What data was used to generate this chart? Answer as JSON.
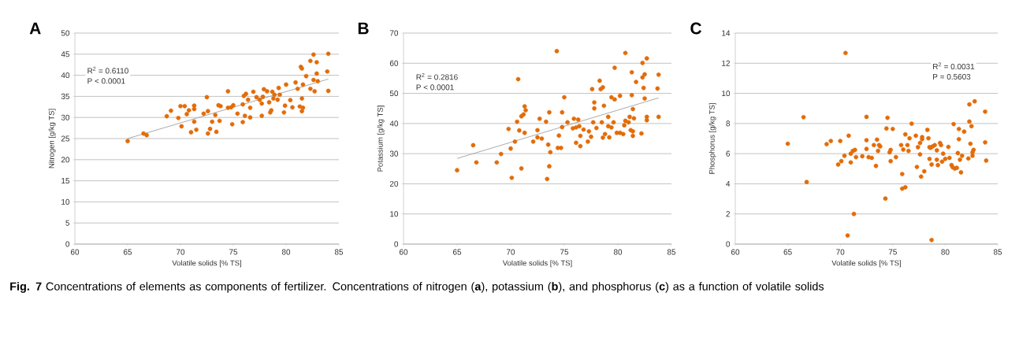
{
  "chart_data": [
    {
      "type": "scatter",
      "title": "A",
      "xlabel": "Volatile solids [% TS]",
      "ylabel": "Nitrogen [g/kg TS]",
      "xlim": [
        60,
        85
      ],
      "ylim": [
        0,
        50
      ],
      "xticks": [
        60,
        65,
        70,
        75,
        80,
        85
      ],
      "yticks": [
        0,
        5,
        10,
        15,
        20,
        25,
        30,
        35,
        40,
        45,
        50
      ],
      "grid": "y",
      "annotations": [
        "R$^{2}$ = 0.6110",
        "P < 0.0001"
      ],
      "series": [
        {
          "color": "#e36c09",
          "marker": "circle",
          "x": [
            65.0,
            66.5,
            66.8,
            68.7,
            69.1,
            69.8,
            70.0,
            70.1,
            70.4,
            70.6,
            70.8,
            71.0,
            71.3,
            71.3,
            71.3,
            71.5,
            72.2,
            72.5,
            72.6,
            72.6,
            72.8,
            73.0,
            73.3,
            73.4,
            73.6,
            73.7,
            73.8,
            74.5,
            74.5,
            74.8,
            74.9,
            75.0,
            75.4,
            75.9,
            75.9,
            76.0,
            76.1,
            76.2,
            76.4,
            76.6,
            76.6,
            76.9,
            77.2,
            77.5,
            77.7,
            77.7,
            77.8,
            77.9,
            78.2,
            78.4,
            78.5,
            78.6,
            78.7,
            78.8,
            78.9,
            79.2,
            79.3,
            79.4,
            79.8,
            79.9,
            80.0,
            80.4,
            80.6,
            80.9,
            81.1,
            81.3,
            81.4,
            81.5,
            81.5,
            81.5,
            81.6,
            81.6,
            81.9,
            82.3,
            82.3,
            82.6,
            82.6,
            82.7,
            82.9,
            82.9,
            83.0,
            83.9,
            84.0,
            84.0
          ],
          "values": [
            24.4,
            26.2,
            25.8,
            30.3,
            31.6,
            29.9,
            32.7,
            27.9,
            32.7,
            30.8,
            31.7,
            26.5,
            32.0,
            32.8,
            29.0,
            27.1,
            30.9,
            34.8,
            31.5,
            26.2,
            27.3,
            29.0,
            30.6,
            26.6,
            32.9,
            29.2,
            32.7,
            36.2,
            32.3,
            32.4,
            28.4,
            32.9,
            30.9,
            28.9,
            33.1,
            35.1,
            30.4,
            35.6,
            34.2,
            30.0,
            32.3,
            36.1,
            34.8,
            34.2,
            30.4,
            33.3,
            34.9,
            36.7,
            36.2,
            33.6,
            31.2,
            31.7,
            36.1,
            34.5,
            35.4,
            34.2,
            37.0,
            35.4,
            31.2,
            32.8,
            37.8,
            34.1,
            32.4,
            38.3,
            36.8,
            32.6,
            42.0,
            41.6,
            34.5,
            31.5,
            32.3,
            37.8,
            39.8,
            43.4,
            36.8,
            44.9,
            38.9,
            36.2,
            43.1,
            40.4,
            38.6,
            40.9,
            45.1,
            36.3
          ]
        },
        {
          "type": "line",
          "color": "#a0a0a0",
          "marker": "none",
          "x": [
            65.0,
            84.0
          ],
          "values": [
            25.0,
            39.1
          ]
        }
      ]
    },
    {
      "type": "scatter",
      "title": "B",
      "xlabel": "Volatile solids [% TS]",
      "ylabel": "Potassium [g/kg TS]",
      "xlim": [
        60,
        85
      ],
      "ylim": [
        0,
        70
      ],
      "xticks": [
        60,
        65,
        70,
        75,
        80,
        85
      ],
      "yticks": [
        0,
        10,
        20,
        30,
        40,
        50,
        60,
        70
      ],
      "grid": "y",
      "annotations": [
        "R$^{2}$ = 0.2816",
        "P < 0.0001"
      ],
      "series": [
        {
          "color": "#e36c09",
          "marker": "circle",
          "x": [
            65.0,
            66.5,
            66.8,
            68.7,
            69.1,
            69.8,
            70.0,
            70.1,
            70.4,
            70.6,
            70.7,
            70.8,
            71.0,
            71.0,
            71.2,
            71.3,
            71.3,
            71.4,
            72.1,
            72.5,
            72.5,
            72.7,
            72.9,
            73.3,
            73.4,
            73.5,
            73.6,
            73.6,
            73.7,
            74.3,
            74.4,
            74.5,
            74.7,
            74.8,
            74.8,
            75.0,
            75.3,
            75.8,
            75.9,
            76.1,
            76.1,
            76.3,
            76.4,
            76.5,
            76.5,
            76.8,
            77.2,
            77.3,
            77.5,
            77.6,
            77.7,
            77.8,
            77.8,
            78.0,
            78.3,
            78.4,
            78.5,
            78.6,
            78.6,
            78.7,
            78.8,
            79.1,
            79.1,
            79.2,
            79.4,
            79.4,
            79.6,
            79.7,
            79.7,
            79.9,
            80.2,
            80.2,
            80.5,
            80.6,
            80.7,
            80.7,
            81.0,
            81.1,
            81.2,
            81.3,
            81.3,
            81.4,
            81.4,
            81.4,
            81.5,
            81.7,
            82.2,
            82.3,
            82.3,
            82.4,
            82.5,
            82.5,
            82.7,
            82.7,
            82.7,
            83.7,
            83.8,
            83.8
          ],
          "values": [
            24.5,
            32.8,
            27.1,
            27.1,
            29.9,
            38.2,
            31.7,
            22.0,
            34.0,
            40.6,
            54.7,
            37.7,
            25.1,
            42.4,
            43.0,
            36.9,
            45.7,
            44.4,
            34.0,
            37.8,
            35.4,
            41.6,
            35.0,
            40.6,
            21.6,
            33.0,
            25.8,
            43.7,
            30.5,
            64.0,
            31.9,
            36.0,
            31.9,
            43.7,
            38.8,
            48.7,
            40.4,
            38.4,
            41.6,
            38.7,
            33.6,
            41.3,
            39.1,
            32.5,
            35.9,
            38.0,
            34.0,
            37.4,
            35.6,
            51.4,
            40.4,
            47.0,
            45.0,
            38.5,
            54.2,
            51.4,
            40.4,
            52.0,
            35.3,
            45.9,
            36.5,
            42.2,
            39.1,
            35.4,
            38.7,
            48.7,
            40.4,
            58.5,
            48.0,
            36.9,
            49.2,
            36.9,
            36.5,
            39.4,
            40.9,
            63.4,
            40.4,
            42.2,
            37.8,
            57.0,
            49.4,
            44.8,
            37.4,
            35.9,
            41.7,
            53.8,
            36.7,
            60.1,
            55.3,
            51.8,
            56.3,
            48.3,
            42.2,
            41.1,
            61.6,
            51.6,
            42.2,
            56.2
          ]
        },
        {
          "type": "line",
          "color": "#a0a0a0",
          "marker": "none",
          "x": [
            65.0,
            83.8
          ],
          "values": [
            28.4,
            48.5
          ]
        }
      ]
    },
    {
      "type": "scatter",
      "title": "C",
      "xlabel": "Volatile solids [% TS]",
      "ylabel": "Phosphorus [g/kg TS]",
      "xlim": [
        60,
        85
      ],
      "ylim": [
        0,
        14
      ],
      "xticks": [
        60,
        65,
        70,
        75,
        80,
        85
      ],
      "yticks": [
        0,
        2,
        4,
        6,
        8,
        10,
        12,
        14
      ],
      "grid": "y",
      "annotations": [
        "R$^{2}$ = 0.0031",
        "P = 0.5603"
      ],
      "series": [
        {
          "color": "#e36c09",
          "marker": "circle",
          "x": [
            65.0,
            66.5,
            66.8,
            68.7,
            69.1,
            69.8,
            70.0,
            70.1,
            70.4,
            70.5,
            70.7,
            70.8,
            71.0,
            71.0,
            71.2,
            71.3,
            71.4,
            71.5,
            72.1,
            72.5,
            72.5,
            72.5,
            72.7,
            73.0,
            73.2,
            73.4,
            73.5,
            73.6,
            73.7,
            73.8,
            74.3,
            74.4,
            74.5,
            74.7,
            74.8,
            74.8,
            75.0,
            75.3,
            75.8,
            75.9,
            75.9,
            76.0,
            76.2,
            76.2,
            76.4,
            76.5,
            76.6,
            76.8,
            77.2,
            77.3,
            77.4,
            77.6,
            77.6,
            77.7,
            77.8,
            77.8,
            78.0,
            78.3,
            78.4,
            78.5,
            78.5,
            78.6,
            78.7,
            78.7,
            78.8,
            79.0,
            79.2,
            79.2,
            79.3,
            79.5,
            79.6,
            79.7,
            79.8,
            80.0,
            80.3,
            80.4,
            80.6,
            80.7,
            80.8,
            80.9,
            81.1,
            81.2,
            81.3,
            81.3,
            81.4,
            81.5,
            81.6,
            81.8,
            82.2,
            82.3,
            82.3,
            82.4,
            82.5,
            82.6,
            82.6,
            82.7,
            82.8,
            83.8,
            83.8,
            83.9
          ],
          "values": [
            6.66,
            8.42,
            4.12,
            6.63,
            6.84,
            5.28,
            6.84,
            5.5,
            5.86,
            12.68,
            0.57,
            7.19,
            5.42,
            6.0,
            6.18,
            2.0,
            6.25,
            5.77,
            5.83,
            6.89,
            8.44,
            6.31,
            5.77,
            5.72,
            6.57,
            5.19,
            6.93,
            6.18,
            6.57,
            6.48,
            3.02,
            7.67,
            8.38,
            6.09,
            5.5,
            6.25,
            7.64,
            5.77,
            6.57,
            4.65,
            3.68,
            6.27,
            7.28,
            3.77,
            6.57,
            6.18,
            7.02,
            7.99,
            7.19,
            5.12,
            6.43,
            6.71,
            5.95,
            4.48,
            7.1,
            6.96,
            4.83,
            7.58,
            7.02,
            6.43,
            5.65,
            6.39,
            5.28,
            0.27,
            6.48,
            6.57,
            6.22,
            5.6,
            5.24,
            6.71,
            6.57,
            5.47,
            6.0,
            5.65,
            6.45,
            5.72,
            5.24,
            5.1,
            7.96,
            5.01,
            5.06,
            6.04,
            7.64,
            6.96,
            5.6,
            4.76,
            5.86,
            7.46,
            5.68,
            8.13,
            9.27,
            6.66,
            7.82,
            5.86,
            6.09,
            6.25,
            9.47,
            8.79,
            6.75,
            5.54
          ]
        }
      ]
    },
    {
      "type": "other",
      "annotations": [
        "**Fig. 7** Concentrations of elements as components of fertilizer. Concentrations of nitrogen (**a**), potassium (**b**), and phosphorus (**c**) as a function of volatile solids"
      ]
    }
  ]
}
